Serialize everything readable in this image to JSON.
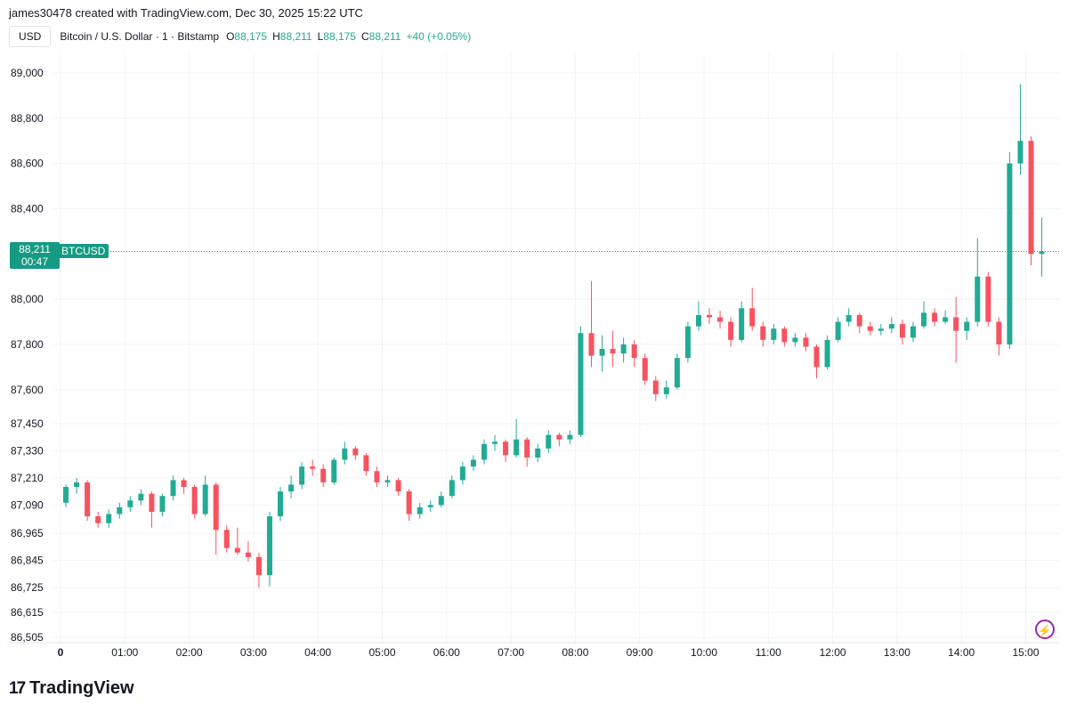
{
  "header": {
    "credit": "james30478 created with TradingView.com, Dec 30, 2025 15:22 UTC"
  },
  "legend": {
    "currency": "USD",
    "symbol_desc": "Bitcoin / U.S. Dollar · 1 · Bitstamp",
    "o_label": "O",
    "o": "88,175",
    "h_label": "H",
    "h": "88,211",
    "l_label": "L",
    "l": "88,175",
    "c_label": "C",
    "c": "88,211",
    "change": "+40 (+0.05%)"
  },
  "price_label": {
    "price": "88,211",
    "countdown": "00:47",
    "symbol": "BTCUSD"
  },
  "footer": {
    "brand": "TradingView",
    "logo_mark": "17"
  },
  "icons": {
    "bolt": "lightning-icon"
  },
  "colors": {
    "up": "#22ab94",
    "down": "#f7525f",
    "grid": "#f0f3fa",
    "last_price": "#159a84"
  },
  "chart_data": {
    "type": "candlestick",
    "symbol": "BTCUSD",
    "interval": "1",
    "ylim": [
      86505,
      89000
    ],
    "y_ticks": [
      89000,
      88800,
      88600,
      88400,
      88000,
      87800,
      87600,
      87450,
      87330,
      87210,
      87090,
      86965,
      86845,
      86725,
      86615,
      86505
    ],
    "y_tick_labels": [
      "89,000",
      "88,800",
      "88,600",
      "88,400",
      "88,000",
      "87,800",
      "87,600",
      "87,450",
      "87,330",
      "87,210",
      "87,090",
      "86,965",
      "86,845",
      "86,725",
      "86,615",
      "86,505"
    ],
    "x_ticks": [
      "0",
      "01:00",
      "02:00",
      "03:00",
      "04:00",
      "05:00",
      "06:00",
      "07:00",
      "08:00",
      "09:00",
      "10:00",
      "11:00",
      "12:00",
      "13:00",
      "14:00",
      "15:00"
    ],
    "last_price": 88211,
    "grid": true,
    "ohlc": [
      [
        "00:00",
        87100,
        87180,
        87080,
        87170
      ],
      [
        "00:10",
        87170,
        87210,
        87140,
        87190
      ],
      [
        "00:20",
        87190,
        87200,
        87020,
        87040
      ],
      [
        "00:30",
        87040,
        87060,
        86990,
        87010
      ],
      [
        "00:40",
        87010,
        87070,
        86990,
        87050
      ],
      [
        "00:50",
        87050,
        87100,
        87030,
        87080
      ],
      [
        "01:00",
        87080,
        87130,
        87060,
        87110
      ],
      [
        "01:10",
        87110,
        87160,
        87090,
        87140
      ],
      [
        "01:20",
        87140,
        87150,
        86990,
        87060
      ],
      [
        "01:30",
        87060,
        87140,
        87040,
        87130
      ],
      [
        "01:40",
        87130,
        87220,
        87110,
        87200
      ],
      [
        "01:50",
        87200,
        87210,
        87140,
        87170
      ],
      [
        "02:00",
        87170,
        87180,
        87030,
        87050
      ],
      [
        "02:10",
        87050,
        87220,
        87040,
        87180
      ],
      [
        "02:20",
        87180,
        87190,
        86870,
        86980
      ],
      [
        "02:30",
        86980,
        87000,
        86880,
        86900
      ],
      [
        "02:40",
        86900,
        86990,
        86870,
        86880
      ],
      [
        "02:50",
        86880,
        86930,
        86840,
        86860
      ],
      [
        "03:00",
        86860,
        86880,
        86725,
        86780
      ],
      [
        "03:10",
        86780,
        87060,
        86730,
        87040
      ],
      [
        "03:20",
        87040,
        87170,
        87020,
        87150
      ],
      [
        "03:30",
        87150,
        87220,
        87120,
        87180
      ],
      [
        "03:40",
        87180,
        87280,
        87160,
        87260
      ],
      [
        "03:50",
        87260,
        87290,
        87220,
        87250
      ],
      [
        "04:00",
        87250,
        87270,
        87170,
        87190
      ],
      [
        "04:10",
        87190,
        87300,
        87180,
        87290
      ],
      [
        "04:20",
        87290,
        87370,
        87270,
        87340
      ],
      [
        "04:30",
        87340,
        87350,
        87290,
        87310
      ],
      [
        "04:40",
        87310,
        87320,
        87220,
        87240
      ],
      [
        "04:50",
        87240,
        87260,
        87170,
        87190
      ],
      [
        "05:00",
        87190,
        87220,
        87170,
        87200
      ],
      [
        "05:10",
        87200,
        87210,
        87130,
        87150
      ],
      [
        "05:20",
        87150,
        87160,
        87020,
        87050
      ],
      [
        "05:30",
        87050,
        87100,
        87030,
        87080
      ],
      [
        "05:40",
        87080,
        87110,
        87060,
        87090
      ],
      [
        "05:50",
        87090,
        87150,
        87080,
        87130
      ],
      [
        "06:00",
        87130,
        87220,
        87120,
        87200
      ],
      [
        "06:10",
        87200,
        87280,
        87180,
        87260
      ],
      [
        "06:20",
        87260,
        87310,
        87240,
        87290
      ],
      [
        "06:30",
        87290,
        87380,
        87270,
        87360
      ],
      [
        "06:40",
        87360,
        87400,
        87330,
        87370
      ],
      [
        "06:50",
        87370,
        87380,
        87280,
        87310
      ],
      [
        "07:00",
        87310,
        87470,
        87300,
        87380
      ],
      [
        "07:10",
        87380,
        87390,
        87260,
        87300
      ],
      [
        "07:20",
        87300,
        87360,
        87280,
        87340
      ],
      [
        "07:30",
        87340,
        87420,
        87320,
        87400
      ],
      [
        "07:40",
        87400,
        87410,
        87350,
        87380
      ],
      [
        "07:50",
        87380,
        87420,
        87360,
        87400
      ],
      [
        "08:00",
        87400,
        87880,
        87390,
        87850
      ],
      [
        "08:10",
        87850,
        88080,
        87700,
        87750
      ],
      [
        "08:20",
        87750,
        87840,
        87680,
        87780
      ],
      [
        "08:30",
        87780,
        87860,
        87700,
        87760
      ],
      [
        "08:40",
        87760,
        87830,
        87720,
        87800
      ],
      [
        "08:50",
        87800,
        87820,
        87700,
        87740
      ],
      [
        "09:00",
        87740,
        87760,
        87620,
        87640
      ],
      [
        "09:10",
        87640,
        87660,
        87550,
        87580
      ],
      [
        "09:20",
        87580,
        87640,
        87560,
        87610
      ],
      [
        "09:30",
        87610,
        87760,
        87600,
        87740
      ],
      [
        "09:40",
        87740,
        87900,
        87720,
        87880
      ],
      [
        "09:50",
        87880,
        87990,
        87860,
        87930
      ],
      [
        "10:00",
        87930,
        87960,
        87890,
        87920
      ],
      [
        "10:10",
        87920,
        87950,
        87870,
        87900
      ],
      [
        "10:20",
        87900,
        87920,
        87790,
        87820
      ],
      [
        "10:30",
        87820,
        87990,
        87810,
        87960
      ],
      [
        "10:40",
        87960,
        88050,
        87860,
        87880
      ],
      [
        "10:50",
        87880,
        87900,
        87790,
        87820
      ],
      [
        "11:00",
        87820,
        87890,
        87800,
        87870
      ],
      [
        "11:10",
        87870,
        87880,
        87790,
        87810
      ],
      [
        "11:20",
        87810,
        87850,
        87790,
        87830
      ],
      [
        "11:30",
        87830,
        87850,
        87770,
        87790
      ],
      [
        "11:40",
        87790,
        87800,
        87650,
        87700
      ],
      [
        "11:50",
        87700,
        87840,
        87690,
        87820
      ],
      [
        "12:00",
        87820,
        87920,
        87810,
        87900
      ],
      [
        "12:10",
        87900,
        87960,
        87880,
        87930
      ],
      [
        "12:20",
        87930,
        87940,
        87850,
        87880
      ],
      [
        "12:30",
        87880,
        87900,
        87840,
        87860
      ],
      [
        "12:40",
        87860,
        87890,
        87840,
        87870
      ],
      [
        "12:50",
        87870,
        87920,
        87850,
        87890
      ],
      [
        "13:00",
        87890,
        87910,
        87800,
        87830
      ],
      [
        "13:10",
        87830,
        87900,
        87810,
        87880
      ],
      [
        "13:20",
        87880,
        87990,
        87870,
        87940
      ],
      [
        "13:30",
        87940,
        87960,
        87880,
        87900
      ],
      [
        "13:40",
        87900,
        87950,
        87890,
        87920
      ],
      [
        "13:50",
        87920,
        88010,
        87720,
        87860
      ],
      [
        "14:00",
        87860,
        87920,
        87820,
        87900
      ],
      [
        "14:10",
        87900,
        88270,
        87880,
        88100
      ],
      [
        "14:20",
        88100,
        88120,
        87880,
        87900
      ],
      [
        "14:30",
        87900,
        87920,
        87750,
        87800
      ],
      [
        "14:40",
        87800,
        88650,
        87780,
        88600
      ],
      [
        "14:50",
        88600,
        88950,
        88550,
        88700
      ],
      [
        "15:00",
        88700,
        88720,
        88150,
        88200
      ],
      [
        "15:10",
        88200,
        88360,
        88100,
        88211
      ]
    ]
  }
}
